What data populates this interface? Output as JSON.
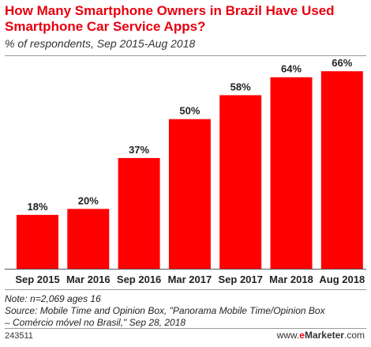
{
  "header": {
    "title": "How Many Smartphone Owners in Brazil Have Used Smartphone Car Service Apps?",
    "subtitle": "% of respondents, Sep 2015-Aug 2018"
  },
  "chart_data": {
    "type": "bar",
    "title": "How Many Smartphone Owners in Brazil Have Used Smartphone Car Service Apps?",
    "subtitle": "% of respondents, Sep 2015-Aug 2018",
    "categories": [
      "Sep 2015",
      "Mar 2016",
      "Sep 2016",
      "Mar 2017",
      "Sep 2017",
      "Mar 2018",
      "Aug 2018"
    ],
    "values": [
      18,
      20,
      37,
      50,
      58,
      64,
      66
    ],
    "value_labels": [
      "18%",
      "20%",
      "37%",
      "50%",
      "58%",
      "64%",
      "66%"
    ],
    "unit": "%",
    "ylim": [
      0,
      70
    ],
    "grid": false,
    "bar_color": "#ff0000"
  },
  "notes": {
    "line1": "Note: n=2,069 ages 16",
    "line2": "Source: Mobile Time and Opinion Box, \"Panorama Mobile Time/Opinion Box",
    "line3": "– Comércio móvel no Brasil,\" Sep 28, 2018"
  },
  "footer": {
    "chart_id": "243511",
    "brand_prefix": "www.",
    "brand_e": "e",
    "brand_name": "Marketer",
    "brand_suffix": ".com"
  },
  "colors": {
    "accent": "#e8000f",
    "bar": "#ff0000",
    "text": "#222222"
  }
}
